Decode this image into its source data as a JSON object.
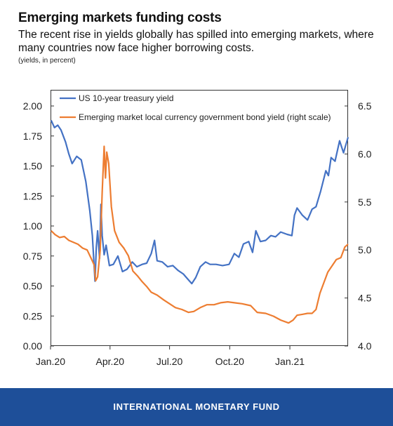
{
  "header": {
    "title": "Emerging markets funding costs",
    "subtitle": "The recent rise in yields globally has spilled into emerging markets, where many countries now face higher borrowing costs.",
    "units": "(yields, in percent)"
  },
  "footer": {
    "label": "INTERNATIONAL MONETARY FUND",
    "bg_color": "#1e4f99"
  },
  "chart_data": {
    "type": "line",
    "title": "Emerging markets funding costs",
    "xlabel": "",
    "ylabel": "(yields, in percent)",
    "ylim": [
      0,
      2
    ],
    "y2lim": [
      4,
      6.5
    ],
    "xlim": [
      "2020-01-01",
      "2021-03-31"
    ],
    "y_ticks": [
      "0.00",
      "0.25",
      "0.50",
      "0.75",
      "1.00",
      "1.25",
      "1.50",
      "1.75",
      "2.00"
    ],
    "y2_ticks": [
      "4.0",
      "4.5",
      "5.0",
      "5.5",
      "6.0",
      "6.5"
    ],
    "x_ticks": [
      {
        "label": "Jan.20",
        "date": "2020-01-01"
      },
      {
        "label": "Apr.20",
        "date": "2020-04-01"
      },
      {
        "label": "Jul.20",
        "date": "2020-07-01"
      },
      {
        "label": "Oct.20",
        "date": "2020-10-01"
      },
      {
        "label": "Jan.21",
        "date": "2021-01-01"
      }
    ],
    "grid": false,
    "legend_position": "top-left",
    "series": [
      {
        "name": "US 10-year treasury yield",
        "axis": "left",
        "color": "#4472c4",
        "points": [
          [
            "2020-01-02",
            1.88
          ],
          [
            "2020-01-07",
            1.82
          ],
          [
            "2020-01-12",
            1.84
          ],
          [
            "2020-01-17",
            1.8
          ],
          [
            "2020-01-24",
            1.7
          ],
          [
            "2020-01-29",
            1.6
          ],
          [
            "2020-02-03",
            1.52
          ],
          [
            "2020-02-10",
            1.58
          ],
          [
            "2020-02-17",
            1.55
          ],
          [
            "2020-02-24",
            1.37
          ],
          [
            "2020-03-01",
            1.13
          ],
          [
            "2020-03-05",
            0.92
          ],
          [
            "2020-03-09",
            0.54
          ],
          [
            "2020-03-11",
            0.82
          ],
          [
            "2020-03-13",
            0.96
          ],
          [
            "2020-03-16",
            0.73
          ],
          [
            "2020-03-18",
            1.18
          ],
          [
            "2020-03-20",
            0.92
          ],
          [
            "2020-03-23",
            0.76
          ],
          [
            "2020-03-26",
            0.84
          ],
          [
            "2020-03-31",
            0.67
          ],
          [
            "2020-04-06",
            0.68
          ],
          [
            "2020-04-13",
            0.75
          ],
          [
            "2020-04-20",
            0.62
          ],
          [
            "2020-04-27",
            0.64
          ],
          [
            "2020-05-05",
            0.7
          ],
          [
            "2020-05-12",
            0.66
          ],
          [
            "2020-05-20",
            0.68
          ],
          [
            "2020-05-27",
            0.69
          ],
          [
            "2020-06-03",
            0.77
          ],
          [
            "2020-06-08",
            0.88
          ],
          [
            "2020-06-12",
            0.71
          ],
          [
            "2020-06-20",
            0.7
          ],
          [
            "2020-06-28",
            0.66
          ],
          [
            "2020-07-06",
            0.67
          ],
          [
            "2020-07-14",
            0.63
          ],
          [
            "2020-07-22",
            0.6
          ],
          [
            "2020-07-30",
            0.55
          ],
          [
            "2020-08-04",
            0.52
          ],
          [
            "2020-08-10",
            0.57
          ],
          [
            "2020-08-17",
            0.66
          ],
          [
            "2020-08-25",
            0.7
          ],
          [
            "2020-09-01",
            0.68
          ],
          [
            "2020-09-10",
            0.68
          ],
          [
            "2020-09-20",
            0.67
          ],
          [
            "2020-09-30",
            0.68
          ],
          [
            "2020-10-08",
            0.77
          ],
          [
            "2020-10-15",
            0.74
          ],
          [
            "2020-10-22",
            0.85
          ],
          [
            "2020-10-30",
            0.87
          ],
          [
            "2020-11-05",
            0.78
          ],
          [
            "2020-11-10",
            0.96
          ],
          [
            "2020-11-17",
            0.87
          ],
          [
            "2020-11-25",
            0.88
          ],
          [
            "2020-12-03",
            0.92
          ],
          [
            "2020-12-10",
            0.91
          ],
          [
            "2020-12-18",
            0.95
          ],
          [
            "2020-12-28",
            0.93
          ],
          [
            "2021-01-04",
            0.92
          ],
          [
            "2021-01-08",
            1.09
          ],
          [
            "2021-01-12",
            1.15
          ],
          [
            "2021-01-20",
            1.09
          ],
          [
            "2021-01-28",
            1.05
          ],
          [
            "2021-02-04",
            1.14
          ],
          [
            "2021-02-10",
            1.16
          ],
          [
            "2021-02-17",
            1.29
          ],
          [
            "2021-02-25",
            1.46
          ],
          [
            "2021-03-01",
            1.42
          ],
          [
            "2021-03-05",
            1.57
          ],
          [
            "2021-03-11",
            1.54
          ],
          [
            "2021-03-18",
            1.71
          ],
          [
            "2021-03-24",
            1.61
          ],
          [
            "2021-03-31",
            1.74
          ]
        ]
      },
      {
        "name": "Emerging market local currency government bond yield (right scale)",
        "axis": "right",
        "color": "#ed7d31",
        "points": [
          [
            "2020-01-02",
            5.2
          ],
          [
            "2020-01-08",
            5.16
          ],
          [
            "2020-01-15",
            5.13
          ],
          [
            "2020-01-22",
            5.14
          ],
          [
            "2020-01-29",
            5.1
          ],
          [
            "2020-02-05",
            5.08
          ],
          [
            "2020-02-12",
            5.06
          ],
          [
            "2020-02-19",
            5.02
          ],
          [
            "2020-02-26",
            5.0
          ],
          [
            "2020-03-04",
            4.9
          ],
          [
            "2020-03-08",
            4.84
          ],
          [
            "2020-03-10",
            4.68
          ],
          [
            "2020-03-13",
            4.72
          ],
          [
            "2020-03-17",
            5.0
          ],
          [
            "2020-03-20",
            5.6
          ],
          [
            "2020-03-23",
            6.08
          ],
          [
            "2020-03-25",
            5.75
          ],
          [
            "2020-03-27",
            6.02
          ],
          [
            "2020-03-30",
            5.9
          ],
          [
            "2020-04-03",
            5.45
          ],
          [
            "2020-04-08",
            5.2
          ],
          [
            "2020-04-15",
            5.08
          ],
          [
            "2020-04-22",
            5.02
          ],
          [
            "2020-04-29",
            4.94
          ],
          [
            "2020-05-06",
            4.78
          ],
          [
            "2020-05-13",
            4.73
          ],
          [
            "2020-05-20",
            4.67
          ],
          [
            "2020-05-27",
            4.62
          ],
          [
            "2020-06-03",
            4.56
          ],
          [
            "2020-06-12",
            4.53
          ],
          [
            "2020-06-22",
            4.48
          ],
          [
            "2020-07-01",
            4.44
          ],
          [
            "2020-07-10",
            4.4
          ],
          [
            "2020-07-20",
            4.38
          ],
          [
            "2020-07-30",
            4.35
          ],
          [
            "2020-08-07",
            4.36
          ],
          [
            "2020-08-17",
            4.4
          ],
          [
            "2020-08-27",
            4.43
          ],
          [
            "2020-09-07",
            4.43
          ],
          [
            "2020-09-17",
            4.45
          ],
          [
            "2020-09-28",
            4.46
          ],
          [
            "2020-10-08",
            4.45
          ],
          [
            "2020-10-20",
            4.44
          ],
          [
            "2020-11-02",
            4.42
          ],
          [
            "2020-11-12",
            4.35
          ],
          [
            "2020-11-25",
            4.34
          ],
          [
            "2020-12-07",
            4.31
          ],
          [
            "2020-12-18",
            4.27
          ],
          [
            "2020-12-30",
            4.24
          ],
          [
            "2021-01-06",
            4.27
          ],
          [
            "2021-01-12",
            4.32
          ],
          [
            "2021-01-20",
            4.33
          ],
          [
            "2021-01-28",
            4.34
          ],
          [
            "2021-02-04",
            4.34
          ],
          [
            "2021-02-10",
            4.38
          ],
          [
            "2021-02-16",
            4.55
          ],
          [
            "2021-02-22",
            4.66
          ],
          [
            "2021-02-28",
            4.77
          ],
          [
            "2021-03-06",
            4.83
          ],
          [
            "2021-03-13",
            4.9
          ],
          [
            "2021-03-20",
            4.92
          ],
          [
            "2021-03-26",
            5.03
          ],
          [
            "2021-03-31",
            5.06
          ]
        ]
      }
    ]
  }
}
